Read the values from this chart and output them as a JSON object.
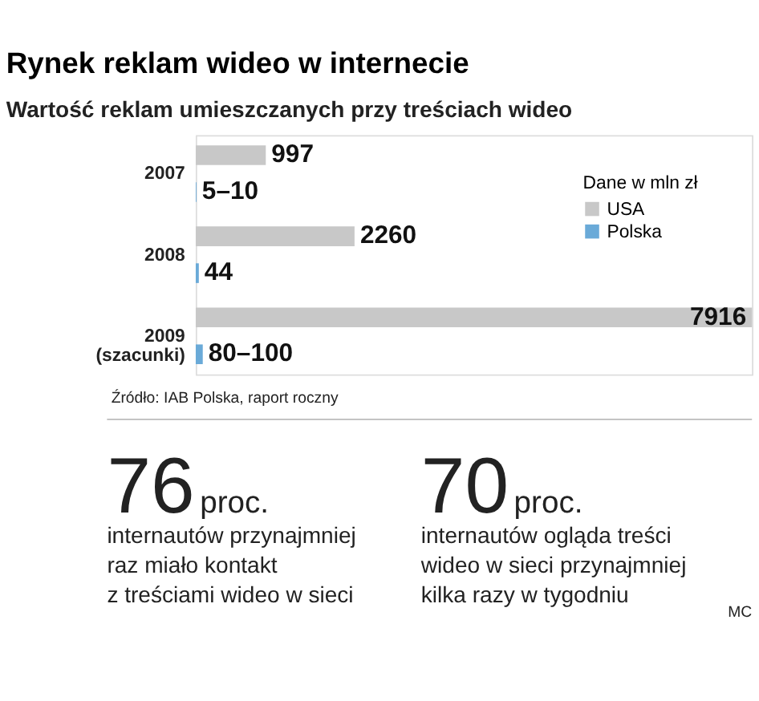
{
  "chart_data": {
    "type": "bar",
    "orientation": "horizontal",
    "title": "Rynek reklam wideo w internecie",
    "subtitle": "Wartość reklam umieszczanych przy treściach wideo",
    "categories": [
      "2007",
      "2008",
      "2009\n(szacunki)"
    ],
    "series": [
      {
        "name": "USA",
        "color": "#c8c8c8",
        "values": [
          997,
          2260,
          7916
        ],
        "value_labels": [
          "997",
          "2260",
          "7916"
        ]
      },
      {
        "name": "Polska",
        "color": "#6aaad8",
        "values": [
          10,
          44,
          100
        ],
        "value_labels": [
          "5–10",
          "44",
          "80–100"
        ]
      }
    ],
    "legend": "right",
    "legend_title": "Dane w mln zł",
    "annotations": [
      "Źródło: IAB Polska, raport roczny",
      "76",
      "proc.",
      "internautów przynajmniej\nraz miało kontakt\nz treściami wideo w sieci",
      "70",
      "proc.",
      "internautów ogląda treści\nwideo w sieci przynajmniej\nkilka razy w tygodniu",
      "MC"
    ]
  }
}
